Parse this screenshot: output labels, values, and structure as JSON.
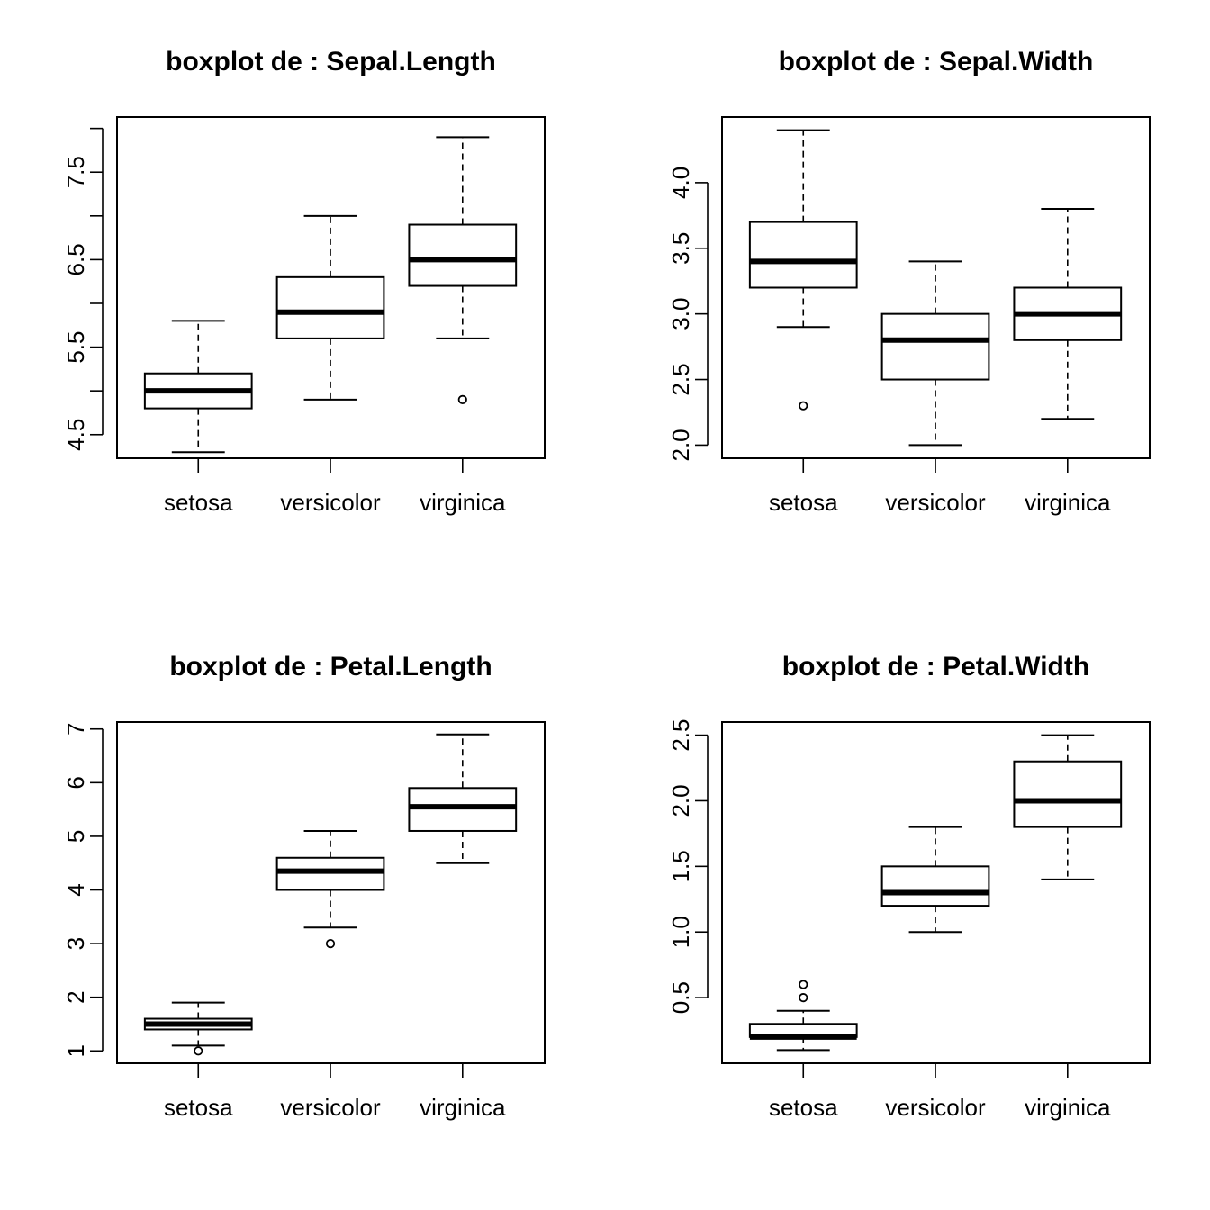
{
  "chart_data": [
    {
      "type": "boxplot",
      "title": "boxplot de : Sepal.Length",
      "categories": [
        "setosa",
        "versicolor",
        "virginica"
      ],
      "ylim": [
        4.23,
        8.13
      ],
      "yticks": [
        4.5,
        5.0,
        5.5,
        6.0,
        6.5,
        7.0,
        7.5,
        8.0
      ],
      "ytick_labels": [
        "4.5",
        "",
        "5.5",
        "",
        "6.5",
        "",
        "7.5",
        ""
      ],
      "boxes": [
        {
          "category": "setosa",
          "whisker_low": 4.3,
          "q1": 4.8,
          "median": 5.0,
          "q3": 5.2,
          "whisker_high": 5.8,
          "outliers": []
        },
        {
          "category": "versicolor",
          "whisker_low": 4.9,
          "q1": 5.6,
          "median": 5.9,
          "q3": 6.3,
          "whisker_high": 7.0,
          "outliers": []
        },
        {
          "category": "virginica",
          "whisker_low": 5.6,
          "q1": 6.2,
          "median": 6.5,
          "q3": 6.9,
          "whisker_high": 7.9,
          "outliers": [
            4.9
          ]
        }
      ]
    },
    {
      "type": "boxplot",
      "title": "boxplot de : Sepal.Width",
      "categories": [
        "setosa",
        "versicolor",
        "virginica"
      ],
      "ylim": [
        1.9,
        4.5
      ],
      "yticks": [
        2.0,
        2.5,
        3.0,
        3.5,
        4.0
      ],
      "ytick_labels": [
        "2.0",
        "2.5",
        "3.0",
        "3.5",
        "4.0"
      ],
      "boxes": [
        {
          "category": "setosa",
          "whisker_low": 2.9,
          "q1": 3.2,
          "median": 3.4,
          "q3": 3.7,
          "whisker_high": 4.4,
          "outliers": [
            2.3
          ]
        },
        {
          "category": "versicolor",
          "whisker_low": 2.0,
          "q1": 2.5,
          "median": 2.8,
          "q3": 3.0,
          "whisker_high": 3.4,
          "outliers": []
        },
        {
          "category": "virginica",
          "whisker_low": 2.2,
          "q1": 2.8,
          "median": 3.0,
          "q3": 3.2,
          "whisker_high": 3.8,
          "outliers": []
        }
      ]
    },
    {
      "type": "boxplot",
      "title": "boxplot de : Petal.Length",
      "categories": [
        "setosa",
        "versicolor",
        "virginica"
      ],
      "ylim": [
        0.77,
        7.13
      ],
      "yticks": [
        1,
        2,
        3,
        4,
        5,
        6,
        7
      ],
      "ytick_labels": [
        "1",
        "2",
        "3",
        "4",
        "5",
        "6",
        "7"
      ],
      "boxes": [
        {
          "category": "setosa",
          "whisker_low": 1.1,
          "q1": 1.4,
          "median": 1.5,
          "q3": 1.6,
          "whisker_high": 1.9,
          "outliers": [
            1.0
          ]
        },
        {
          "category": "versicolor",
          "whisker_low": 3.3,
          "q1": 4.0,
          "median": 4.35,
          "q3": 4.6,
          "whisker_high": 5.1,
          "outliers": [
            3.0
          ]
        },
        {
          "category": "virginica",
          "whisker_low": 4.5,
          "q1": 5.1,
          "median": 5.55,
          "q3": 5.9,
          "whisker_high": 6.9,
          "outliers": []
        }
      ]
    },
    {
      "type": "boxplot",
      "title": "boxplot de : Petal.Width",
      "categories": [
        "setosa",
        "versicolor",
        "virginica"
      ],
      "ylim": [
        0.0,
        2.6
      ],
      "yticks": [
        0.5,
        1.0,
        1.5,
        2.0,
        2.5
      ],
      "ytick_labels": [
        "0.5",
        "1.0",
        "1.5",
        "2.0",
        "2.5"
      ],
      "boxes": [
        {
          "category": "setosa",
          "whisker_low": 0.1,
          "q1": 0.2,
          "median": 0.2,
          "q3": 0.3,
          "whisker_high": 0.4,
          "outliers": [
            0.5,
            0.6
          ]
        },
        {
          "category": "versicolor",
          "whisker_low": 1.0,
          "q1": 1.2,
          "median": 1.3,
          "q3": 1.5,
          "whisker_high": 1.8,
          "outliers": []
        },
        {
          "category": "virginica",
          "whisker_low": 1.4,
          "q1": 1.8,
          "median": 2.0,
          "q3": 2.3,
          "whisker_high": 2.5,
          "outliers": []
        }
      ]
    }
  ]
}
